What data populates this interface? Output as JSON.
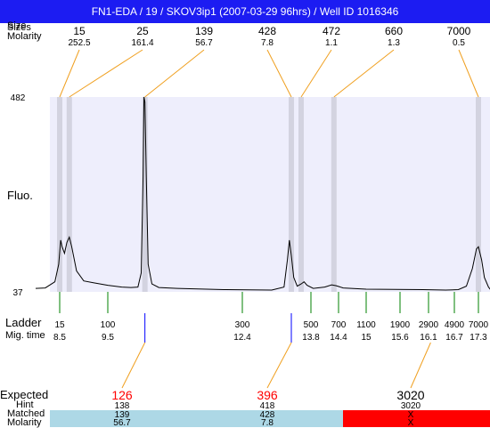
{
  "title": "FN1-EDA / 19 / SKOV3ip1 (2007-03-29 96hrs) / Well ID 1016346",
  "labels": {
    "size_overlap": "Size",
    "sizes": "Sizes",
    "molarity_top": "Molarity",
    "y_axis": "Fluo.",
    "ladder": "Ladder",
    "mig_time": "Mig. time",
    "expected": "Expected",
    "hint": "Hint",
    "matched": "Matched",
    "molarity_bottom": "Molarity"
  },
  "colors": {
    "title_bar": "#1c1cf2",
    "plot_bg": "#eeeefc",
    "peak_band": "#d3d3e0",
    "trace": "#000000",
    "connector": "#f0a020",
    "ladder_tick": "#008000",
    "expected_tick": "#0000ff",
    "expected_red": "#ff0000",
    "matched_band": "#add8e6",
    "unmatched_band": "#ff0000"
  },
  "chart_data": {
    "type": "line",
    "ylabel": "Fluo.",
    "ylim": [
      37,
      482
    ],
    "yticks": [
      37,
      482
    ],
    "peaks": [
      {
        "size": "15",
        "molarity": "252.5",
        "mig_time": 8.5
      },
      {
        "size": "25",
        "molarity": "161.4",
        "mig_time": 8.7
      },
      {
        "size": "139",
        "molarity": "56.7",
        "mig_time": 10.3
      },
      {
        "size": "428",
        "molarity": "7.8",
        "mig_time": 13.4
      },
      {
        "size": "472",
        "molarity": "1.1",
        "mig_time": 13.6
      },
      {
        "size": "660",
        "molarity": "1.3",
        "mig_time": 14.3
      },
      {
        "size": "7000",
        "molarity": "0.5",
        "mig_time": 17.3
      }
    ],
    "ladder": [
      {
        "size": "15",
        "mig_time": "8.5"
      },
      {
        "size": "100",
        "mig_time": "9.5"
      },
      {
        "size": "300",
        "mig_time": "12.4"
      },
      {
        "size": "500",
        "mig_time": "13.8"
      },
      {
        "size": "700",
        "mig_time": "14.4"
      },
      {
        "size": "1100",
        "mig_time": "15"
      },
      {
        "size": "1900",
        "mig_time": "15.6"
      },
      {
        "size": "2900",
        "mig_time": "16.1"
      },
      {
        "size": "4900",
        "mig_time": "16.7"
      },
      {
        "size": "7000",
        "mig_time": "17.3"
      }
    ],
    "expected": [
      {
        "expected": "126",
        "hint": "138",
        "matched": "139",
        "molarity": "56.7",
        "mig_time": 10.3,
        "status": "matched"
      },
      {
        "expected": "396",
        "hint": "418",
        "matched": "428",
        "molarity": "7.8",
        "mig_time": 13.4,
        "status": "matched"
      },
      {
        "expected": "3020",
        "hint": "3020",
        "matched": "X",
        "molarity": "X",
        "mig_time": 16.15,
        "status": "unmatched"
      }
    ],
    "trace": [
      [
        8.0,
        45
      ],
      [
        8.2,
        46
      ],
      [
        8.4,
        60
      ],
      [
        8.48,
        100
      ],
      [
        8.52,
        155
      ],
      [
        8.55,
        140
      ],
      [
        8.6,
        125
      ],
      [
        8.65,
        150
      ],
      [
        8.7,
        162
      ],
      [
        8.75,
        140
      ],
      [
        8.85,
        85
      ],
      [
        9.0,
        62
      ],
      [
        9.2,
        58
      ],
      [
        9.5,
        52
      ],
      [
        9.8,
        48
      ],
      [
        10.0,
        47
      ],
      [
        10.15,
        48
      ],
      [
        10.22,
        80
      ],
      [
        10.26,
        300
      ],
      [
        10.28,
        482
      ],
      [
        10.3,
        470
      ],
      [
        10.33,
        300
      ],
      [
        10.37,
        100
      ],
      [
        10.45,
        55
      ],
      [
        10.6,
        47
      ],
      [
        11.0,
        45
      ],
      [
        12.0,
        42
      ],
      [
        13.0,
        41
      ],
      [
        13.25,
        48
      ],
      [
        13.32,
        110
      ],
      [
        13.36,
        155
      ],
      [
        13.4,
        120
      ],
      [
        13.45,
        70
      ],
      [
        13.52,
        50
      ],
      [
        13.6,
        55
      ],
      [
        13.66,
        60
      ],
      [
        13.72,
        52
      ],
      [
        13.85,
        45
      ],
      [
        14.1,
        48
      ],
      [
        14.25,
        53
      ],
      [
        14.35,
        51
      ],
      [
        14.5,
        46
      ],
      [
        15.0,
        43
      ],
      [
        16.0,
        42
      ],
      [
        16.5,
        41
      ],
      [
        16.8,
        42
      ],
      [
        17.0,
        50
      ],
      [
        17.15,
        90
      ],
      [
        17.25,
        135
      ],
      [
        17.3,
        140
      ],
      [
        17.38,
        110
      ],
      [
        17.45,
        70
      ],
      [
        17.55,
        48
      ],
      [
        17.6,
        42
      ]
    ]
  }
}
